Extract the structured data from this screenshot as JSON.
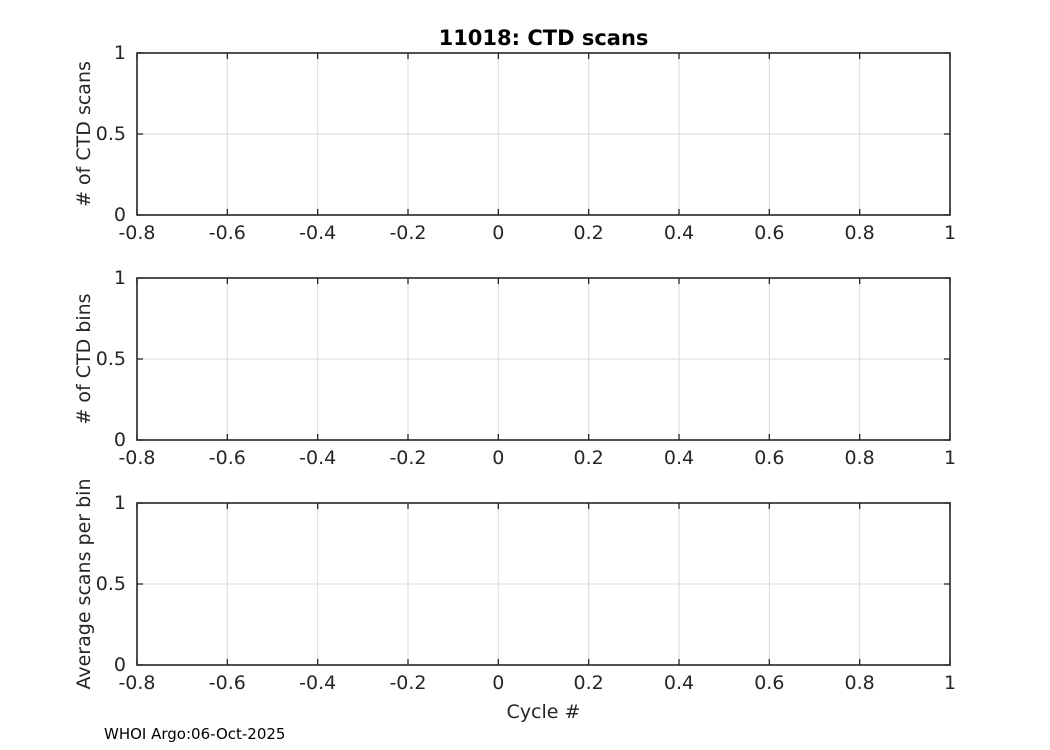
{
  "figure": {
    "title": "11018: CTD scans",
    "xlabel": "Cycle #",
    "footer": "WHOI Argo:06-Oct-2025"
  },
  "colors": {
    "background": "#ffffff",
    "axis": "#262626",
    "tick_text": "#262626",
    "grid": "#d9d9d9",
    "title_text": "#000000"
  },
  "chart_data": [
    {
      "type": "line",
      "title": "11018: CTD scans",
      "ylabel": "# of CTD scans",
      "xlabel": "",
      "xlim": [
        -0.8,
        1
      ],
      "ylim": [
        0,
        1
      ],
      "xticks": [
        -0.8,
        -0.6,
        -0.4,
        -0.2,
        0,
        0.2,
        0.4,
        0.6,
        0.8,
        1
      ],
      "xtick_labels": [
        "-0.8",
        "-0.6",
        "-0.4",
        "-0.2",
        "0",
        "0.2",
        "0.4",
        "0.6",
        "0.8",
        "1"
      ],
      "yticks": [
        0,
        0.5,
        1
      ],
      "ytick_labels": [
        "0",
        "0.5",
        "1"
      ],
      "grid": true,
      "box": true,
      "series": []
    },
    {
      "type": "line",
      "title": "",
      "ylabel": "# of CTD bins",
      "xlabel": "",
      "xlim": [
        -0.8,
        1
      ],
      "ylim": [
        0,
        1
      ],
      "xticks": [
        -0.8,
        -0.6,
        -0.4,
        -0.2,
        0,
        0.2,
        0.4,
        0.6,
        0.8,
        1
      ],
      "xtick_labels": [
        "-0.8",
        "-0.6",
        "-0.4",
        "-0.2",
        "0",
        "0.2",
        "0.4",
        "0.6",
        "0.8",
        "1"
      ],
      "yticks": [
        0,
        0.5,
        1
      ],
      "ytick_labels": [
        "0",
        "0.5",
        "1"
      ],
      "grid": true,
      "box": true,
      "series": []
    },
    {
      "type": "line",
      "title": "",
      "ylabel": "Average scans per bin",
      "xlabel": "Cycle #",
      "xlim": [
        -0.8,
        1
      ],
      "ylim": [
        0,
        1
      ],
      "xticks": [
        -0.8,
        -0.6,
        -0.4,
        -0.2,
        0,
        0.2,
        0.4,
        0.6,
        0.8,
        1
      ],
      "xtick_labels": [
        "-0.8",
        "-0.6",
        "-0.4",
        "-0.2",
        "0",
        "0.2",
        "0.4",
        "0.6",
        "0.8",
        "1"
      ],
      "yticks": [
        0,
        0.5,
        1
      ],
      "ytick_labels": [
        "0",
        "0.5",
        "1"
      ],
      "grid": true,
      "box": true,
      "series": []
    }
  ]
}
